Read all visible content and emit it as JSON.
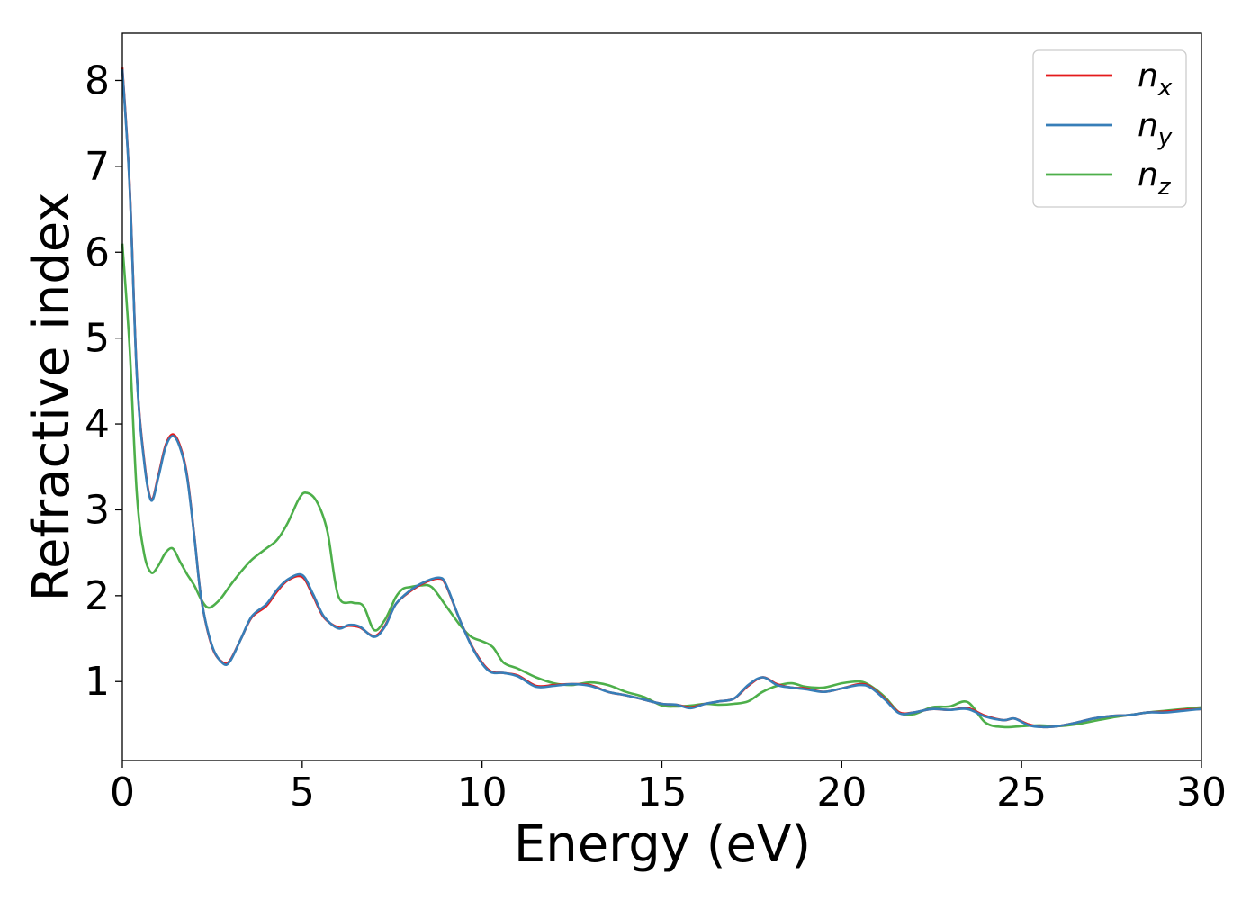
{
  "chart_data": {
    "type": "line",
    "title": "",
    "xlabel": "Energy (eV)",
    "ylabel": "Refractive index",
    "xlim": [
      0,
      30
    ],
    "ylim": [
      0.08,
      8.55
    ],
    "xticks": [
      "0",
      "5",
      "10",
      "15",
      "20",
      "25",
      "30"
    ],
    "yticks": [
      "1",
      "2",
      "3",
      "4",
      "5",
      "6",
      "7",
      "8"
    ],
    "grid": false,
    "legend_position": "top-right",
    "series": [
      {
        "name": "n_x",
        "label_main": "n",
        "label_sub": "x",
        "color": "#e41a1c",
        "x": [
          0.0,
          0.2,
          0.4,
          0.6,
          0.8,
          1.0,
          1.2,
          1.4,
          1.6,
          1.8,
          2.0,
          2.2,
          2.5,
          2.8,
          3.0,
          3.3,
          3.6,
          4.0,
          4.3,
          4.6,
          5.0,
          5.3,
          5.6,
          6.0,
          6.3,
          6.6,
          7.0,
          7.3,
          7.6,
          8.0,
          8.4,
          8.8,
          9.0,
          9.4,
          9.8,
          10.2,
          10.6,
          11.0,
          11.5,
          12.0,
          12.5,
          13.0,
          13.5,
          14.0,
          14.5,
          15.0,
          15.4,
          15.8,
          16.2,
          16.6,
          17.0,
          17.4,
          17.8,
          18.2,
          18.6,
          19.0,
          19.5,
          20.0,
          20.5,
          20.8,
          21.2,
          21.6,
          22.0,
          22.5,
          23.0,
          23.5,
          24.0,
          24.5,
          24.8,
          25.2,
          25.6,
          26.0,
          26.5,
          27.0,
          27.5,
          28.0,
          28.5,
          29.0,
          29.5,
          30.0
        ],
        "values": [
          8.15,
          6.8,
          4.6,
          3.6,
          3.12,
          3.4,
          3.75,
          3.88,
          3.75,
          3.4,
          2.7,
          1.95,
          1.4,
          1.22,
          1.25,
          1.5,
          1.75,
          1.88,
          2.05,
          2.18,
          2.22,
          2.0,
          1.75,
          1.63,
          1.65,
          1.63,
          1.53,
          1.65,
          1.9,
          2.05,
          2.15,
          2.2,
          2.12,
          1.7,
          1.35,
          1.13,
          1.1,
          1.07,
          0.95,
          0.96,
          0.97,
          0.96,
          0.88,
          0.84,
          0.79,
          0.74,
          0.73,
          0.7,
          0.74,
          0.77,
          0.8,
          0.95,
          1.05,
          0.97,
          0.93,
          0.92,
          0.88,
          0.92,
          0.97,
          0.94,
          0.8,
          0.64,
          0.64,
          0.68,
          0.67,
          0.69,
          0.6,
          0.55,
          0.57,
          0.5,
          0.47,
          0.48,
          0.52,
          0.57,
          0.6,
          0.61,
          0.64,
          0.65,
          0.67,
          0.68
        ]
      },
      {
        "name": "n_y",
        "label_main": "n",
        "label_sub": "y",
        "color": "#377eb8",
        "x": [
          0.0,
          0.2,
          0.4,
          0.6,
          0.8,
          1.0,
          1.2,
          1.4,
          1.6,
          1.8,
          2.0,
          2.2,
          2.5,
          2.8,
          3.0,
          3.3,
          3.6,
          4.0,
          4.3,
          4.6,
          5.0,
          5.3,
          5.6,
          6.0,
          6.3,
          6.6,
          7.0,
          7.3,
          7.6,
          8.0,
          8.4,
          8.8,
          9.0,
          9.4,
          9.8,
          10.2,
          10.6,
          11.0,
          11.5,
          12.0,
          12.5,
          13.0,
          13.5,
          14.0,
          14.5,
          15.0,
          15.4,
          15.8,
          16.2,
          16.6,
          17.0,
          17.4,
          17.8,
          18.2,
          18.6,
          19.0,
          19.5,
          20.0,
          20.5,
          20.8,
          21.2,
          21.6,
          22.0,
          22.5,
          23.0,
          23.5,
          24.0,
          24.5,
          24.8,
          25.2,
          25.6,
          26.0,
          26.5,
          27.0,
          27.5,
          28.0,
          28.5,
          29.0,
          29.5,
          30.0
        ],
        "values": [
          8.13,
          6.78,
          4.58,
          3.58,
          3.11,
          3.38,
          3.73,
          3.86,
          3.73,
          3.38,
          2.69,
          1.95,
          1.41,
          1.21,
          1.24,
          1.5,
          1.76,
          1.9,
          2.07,
          2.19,
          2.24,
          2.02,
          1.76,
          1.62,
          1.66,
          1.64,
          1.52,
          1.64,
          1.9,
          2.06,
          2.16,
          2.21,
          2.13,
          1.7,
          1.34,
          1.12,
          1.1,
          1.06,
          0.94,
          0.95,
          0.97,
          0.95,
          0.88,
          0.84,
          0.79,
          0.74,
          0.73,
          0.69,
          0.74,
          0.77,
          0.8,
          0.96,
          1.05,
          0.96,
          0.93,
          0.91,
          0.88,
          0.92,
          0.96,
          0.93,
          0.79,
          0.63,
          0.64,
          0.68,
          0.67,
          0.68,
          0.59,
          0.55,
          0.57,
          0.49,
          0.47,
          0.48,
          0.52,
          0.57,
          0.6,
          0.61,
          0.64,
          0.64,
          0.66,
          0.68
        ]
      },
      {
        "name": "n_z",
        "label_main": "n",
        "label_sub": "z",
        "color": "#4daf4a",
        "x": [
          0.0,
          0.2,
          0.4,
          0.6,
          0.8,
          1.0,
          1.2,
          1.4,
          1.6,
          1.8,
          2.0,
          2.2,
          2.4,
          2.7,
          3.0,
          3.3,
          3.6,
          4.0,
          4.3,
          4.6,
          4.9,
          5.1,
          5.4,
          5.7,
          6.0,
          6.4,
          6.7,
          7.0,
          7.3,
          7.6,
          7.8,
          8.0,
          8.3,
          8.6,
          9.0,
          9.4,
          9.7,
          10.0,
          10.3,
          10.6,
          11.0,
          11.5,
          12.0,
          12.5,
          13.0,
          13.5,
          14.0,
          14.5,
          15.0,
          15.4,
          15.8,
          16.2,
          16.6,
          17.0,
          17.4,
          17.8,
          18.2,
          18.6,
          19.0,
          19.5,
          20.0,
          20.5,
          20.8,
          21.2,
          21.6,
          22.0,
          22.5,
          23.0,
          23.5,
          24.0,
          24.5,
          25.0,
          25.5,
          26.0,
          26.5,
          27.0,
          27.5,
          28.0,
          28.5,
          29.0,
          29.5,
          30.0
        ],
        "values": [
          6.1,
          4.9,
          3.2,
          2.5,
          2.27,
          2.35,
          2.5,
          2.55,
          2.4,
          2.25,
          2.12,
          1.95,
          1.86,
          1.95,
          2.12,
          2.28,
          2.42,
          2.55,
          2.65,
          2.85,
          3.12,
          3.2,
          3.1,
          2.75,
          2.0,
          1.92,
          1.88,
          1.6,
          1.72,
          1.98,
          2.08,
          2.1,
          2.12,
          2.1,
          1.88,
          1.65,
          1.52,
          1.47,
          1.4,
          1.22,
          1.15,
          1.05,
          0.98,
          0.96,
          0.99,
          0.96,
          0.88,
          0.82,
          0.72,
          0.71,
          0.72,
          0.74,
          0.73,
          0.74,
          0.77,
          0.88,
          0.95,
          0.98,
          0.94,
          0.93,
          0.98,
          1.0,
          0.95,
          0.82,
          0.64,
          0.62,
          0.7,
          0.71,
          0.76,
          0.52,
          0.47,
          0.48,
          0.49,
          0.48,
          0.5,
          0.54,
          0.58,
          0.61,
          0.64,
          0.66,
          0.68,
          0.7
        ]
      }
    ]
  }
}
